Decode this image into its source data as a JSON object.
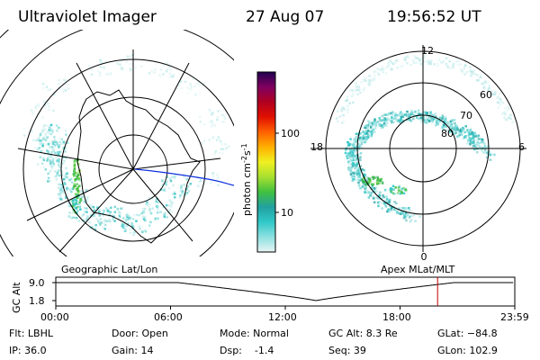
{
  "header": {
    "instrument": "Ultraviolet Imager",
    "date": "27 Aug 07",
    "time": "19:56:52 UT"
  },
  "left_map": {
    "label": "Geographic Lat/Lon"
  },
  "right_map": {
    "label": "Apex MLat/MLT",
    "mlt_labels": [
      "12",
      "18",
      "6",
      "0"
    ],
    "lat_labels": [
      "60",
      "70",
      "80"
    ]
  },
  "colorbar": {
    "label_main": "photon cm",
    "label_sup1": "-2",
    "label_mid": "s",
    "label_sup2": "-1",
    "ticks": [
      "100",
      "10"
    ],
    "stops": [
      "#e8f4f4",
      "#8de0e0",
      "#30c8c8",
      "#22a0a0",
      "#40c040",
      "#a8e030",
      "#f0f020",
      "#ffb000",
      "#ff6000",
      "#e01000",
      "#b00020",
      "#800060",
      "#200050"
    ]
  },
  "altitude_plot": {
    "ylabel": "GC Alt",
    "yticks": [
      "9.0",
      "1.8"
    ],
    "xticks": [
      "00:00",
      "06:00",
      "12:00",
      "18:00",
      "23:59"
    ],
    "marker_time_hours": 19.95,
    "perigee_time_hours": 13.6,
    "ymax_re": 9.0,
    "ymin_re": 1.8,
    "marker_color": "#c00000"
  },
  "footer": {
    "flt": "Flt: LBHL",
    "ip": "IP: 36.0",
    "door": "Door: Open",
    "gain": "Gain: 14",
    "mode": "Mode: Normal",
    "dsp": "Dsp:    -1.4",
    "gcalt": "GC Alt: 8.3 Re",
    "seq": "Seq: 39",
    "glat": "GLat: −84.8",
    "glon": "GLon: 102.9"
  }
}
